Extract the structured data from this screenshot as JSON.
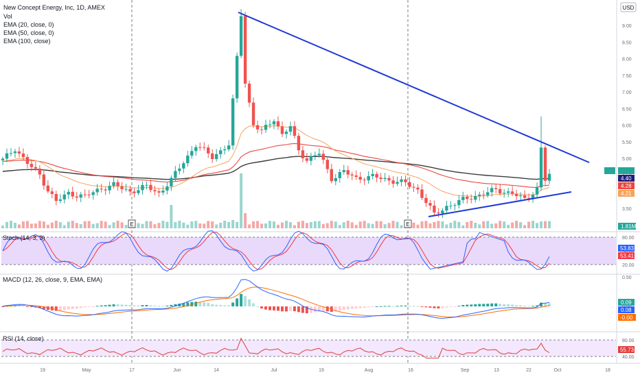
{
  "legend": {
    "title": "New Concept Energy, Inc, 1D, AMEX",
    "vol": "Vol",
    "ema20": "EMA (20, close, 0)",
    "ema50": "EMA (50, close, 0)",
    "ema100": "EMA (100, close)"
  },
  "currency_badge": "USD",
  "panel_labels": {
    "stoch": "Stoch (14, 3, 3)",
    "macd": "MACD (12, 26, close, 9, EMA, EMA)",
    "rsi": "RSI (14, close)"
  },
  "earnings_marker": "E",
  "colors": {
    "up": "#26a69a",
    "down": "#ef5350",
    "trendline": "#1d38d8",
    "ema20": "#f7a25a",
    "ema50": "#e9473f",
    "ema100": "#3b3b3b",
    "stoch_k": "#2962ff",
    "stoch_d": "#f23645",
    "macd": "#2962ff",
    "signal": "#ff6d00",
    "rsi": "#e03c3c",
    "band_fill": "#e9d9fb"
  },
  "chart_data": [
    {
      "type": "candlestick",
      "title": "New Concept Energy, Inc, 1D, AMEX",
      "ylim": [
        3.0,
        9.5
      ],
      "yticks": [
        "9.00",
        "8.50",
        "8.00",
        "7.50",
        "7.00",
        "6.50",
        "6.00",
        "5.50",
        "5.00",
        "4.50",
        "4.00",
        "3.50",
        "3.00"
      ],
      "x_ticks": [
        "19",
        "May",
        "17",
        "Jun",
        "14",
        "Jul",
        "19",
        "Aug",
        "16",
        "Sep",
        "13",
        "22",
        "Oct",
        "18"
      ],
      "price_labels": [
        {
          "value": "4.40",
          "color": "#1f1f7a"
        },
        {
          "value": "4.28",
          "color": "#e9473f"
        },
        {
          "value": "4.21",
          "color": "#f7a25a"
        }
      ],
      "volume_label": "1.81M",
      "trendlines": [
        {
          "from": [
            "Jun 16",
            9.35
          ],
          "to": [
            "Oct 2",
            4.75
          ]
        },
        {
          "from": [
            "Aug 20",
            3.2
          ],
          "to": [
            "Oct 2",
            4.1
          ]
        }
      ]
    },
    {
      "type": "line",
      "title": "Stoch (14, 3, 3)",
      "yticks": [
        "80.00",
        "50.00",
        "20.00"
      ],
      "ylim": [
        0,
        100
      ],
      "series_values": [
        {
          "label": "53.83",
          "color": "#2962ff"
        },
        {
          "label": "53.41",
          "color": "#f23645"
        }
      ]
    },
    {
      "type": "bar",
      "title": "MACD (12, 26, close, 9, EMA, EMA)",
      "yticks": [
        "0.50",
        "0.00"
      ],
      "series_values": [
        {
          "label": "0.09",
          "color": "#26a69a"
        },
        {
          "label": "0.08",
          "color": "#2962ff"
        },
        {
          "label": "-0.00",
          "color": "#ff6d00"
        }
      ]
    },
    {
      "type": "line",
      "title": "RSI (14, close)",
      "yticks": [
        "80.00",
        "40.00"
      ],
      "ylim": [
        20,
        90
      ],
      "series_values": [
        {
          "label": "55.73",
          "color": "#e03c3c"
        }
      ]
    }
  ]
}
